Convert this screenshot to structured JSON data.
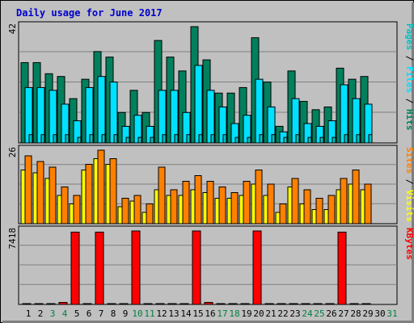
{
  "title": "Daily usage for June 2017",
  "colors": {
    "background": "#C0C0C0",
    "title": "#0000CC",
    "hits": "#00805C",
    "files": "#00E0FF",
    "pages": "#00C0C0",
    "visits": "#FFFF00",
    "sites": "#FF8000",
    "kbytes": "#FF0000",
    "weekend_label": "#008040"
  },
  "chart_data": [
    {
      "type": "bar",
      "name": "hits-files-pages",
      "ymax_label": "42",
      "ylim": [
        0,
        42
      ],
      "legend_right": [
        "Pages",
        "Files",
        "Hits"
      ],
      "categories": [
        "1",
        "2",
        "3",
        "4",
        "5",
        "6",
        "7",
        "8",
        "9",
        "10",
        "11",
        "12",
        "13",
        "14",
        "15",
        "16",
        "17",
        "18",
        "19",
        "20",
        "21",
        "22",
        "23",
        "24",
        "25",
        "26",
        "27",
        "28",
        "29",
        "30",
        "31"
      ],
      "weekend_days": [
        "3",
        "4",
        "10",
        "11",
        "17",
        "18",
        "24",
        "25",
        "31"
      ],
      "series": [
        {
          "name": "Hits",
          "values": [
            29,
            29,
            25,
            24,
            16,
            23,
            33,
            31,
            11,
            19,
            11,
            37,
            31,
            26,
            42,
            30,
            18,
            18,
            20,
            38,
            22,
            6,
            26,
            15,
            12,
            13,
            27,
            23,
            24,
            0,
            0
          ]
        },
        {
          "name": "Files",
          "values": [
            20,
            20,
            19,
            14,
            8,
            20,
            24,
            22,
            6,
            10,
            6,
            19,
            19,
            11,
            28,
            19,
            13,
            7,
            10,
            23,
            13,
            4,
            16,
            7,
            6,
            8,
            21,
            16,
            14,
            0,
            0
          ]
        },
        {
          "name": "Pages",
          "values": [
            3,
            3,
            3,
            3,
            2,
            3,
            3,
            3,
            2,
            2,
            2,
            3,
            3,
            3,
            3,
            3,
            3,
            2,
            2,
            3,
            3,
            2,
            3,
            2,
            2,
            2,
            3,
            3,
            3,
            0,
            0
          ]
        }
      ]
    },
    {
      "type": "bar",
      "name": "visits-sites",
      "ymax_label": "26",
      "ylim": [
        0,
        26
      ],
      "legend_right": [
        "Sites",
        "Visits"
      ],
      "categories": [
        "1",
        "2",
        "3",
        "4",
        "5",
        "6",
        "7",
        "8",
        "9",
        "10",
        "11",
        "12",
        "13",
        "14",
        "15",
        "16",
        "17",
        "18",
        "19",
        "20",
        "21",
        "22",
        "23",
        "24",
        "25",
        "26",
        "27",
        "28",
        "29",
        "30",
        "31"
      ],
      "series": [
        {
          "name": "Visits",
          "values": [
            19,
            18,
            16,
            10,
            7,
            19,
            23,
            21,
            6,
            8,
            4,
            12,
            10,
            10,
            12,
            11,
            9,
            9,
            10,
            14,
            10,
            4,
            13,
            7,
            5,
            5,
            12,
            14,
            12,
            0,
            0
          ]
        },
        {
          "name": "Sites",
          "values": [
            24,
            22,
            20,
            13,
            10,
            21,
            26,
            23,
            9,
            10,
            7,
            20,
            12,
            15,
            17,
            15,
            13,
            11,
            15,
            19,
            14,
            7,
            16,
            12,
            9,
            10,
            16,
            19,
            14,
            0,
            0
          ]
        }
      ]
    },
    {
      "type": "bar",
      "name": "kbytes",
      "ymax_label": "7418",
      "ylim": [
        0,
        7418
      ],
      "legend_right": [
        "KBytes"
      ],
      "categories": [
        "1",
        "2",
        "3",
        "4",
        "5",
        "6",
        "7",
        "8",
        "9",
        "10",
        "11",
        "12",
        "13",
        "14",
        "15",
        "16",
        "17",
        "18",
        "19",
        "20",
        "21",
        "22",
        "23",
        "24",
        "25",
        "26",
        "27",
        "28",
        "29",
        "30",
        "31"
      ],
      "series": [
        {
          "name": "KBytes",
          "values": [
            60,
            60,
            60,
            200,
            7300,
            60,
            7300,
            60,
            60,
            7418,
            60,
            60,
            60,
            60,
            7418,
            200,
            60,
            60,
            60,
            7418,
            60,
            60,
            60,
            60,
            60,
            60,
            7300,
            60,
            60,
            0,
            0
          ]
        }
      ]
    }
  ]
}
